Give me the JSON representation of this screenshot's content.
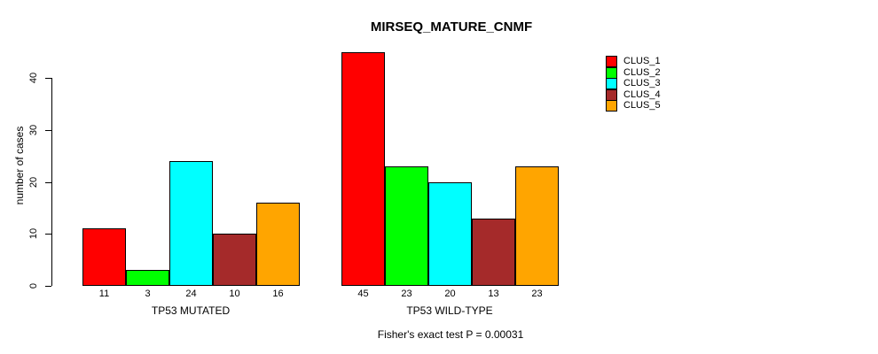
{
  "chart_data": {
    "type": "bar",
    "title": "MIRSEQ_MATURE_CNMF",
    "subtitle": "Fisher's exact test P = 0.00031",
    "ylabel": "number of cases",
    "xlabel": "",
    "categories": [
      "TP53 MUTATED",
      "TP53 WILD-TYPE"
    ],
    "series": [
      {
        "name": "CLUS_1",
        "color": "#ff0000",
        "values": [
          11,
          45
        ]
      },
      {
        "name": "CLUS_2",
        "color": "#00ff00",
        "values": [
          3,
          23
        ]
      },
      {
        "name": "CLUS_3",
        "color": "#00ffff",
        "values": [
          24,
          20
        ]
      },
      {
        "name": "CLUS_4",
        "color": "#a52a2a",
        "values": [
          10,
          13
        ]
      },
      {
        "name": "CLUS_5",
        "color": "#ffa500",
        "values": [
          16,
          23
        ]
      }
    ],
    "yticks": [
      0,
      10,
      20,
      30,
      40
    ],
    "ylim": [
      0,
      45
    ],
    "grid": "off",
    "legend_position": "outside-top-right",
    "bar_border_color": "#000000"
  }
}
